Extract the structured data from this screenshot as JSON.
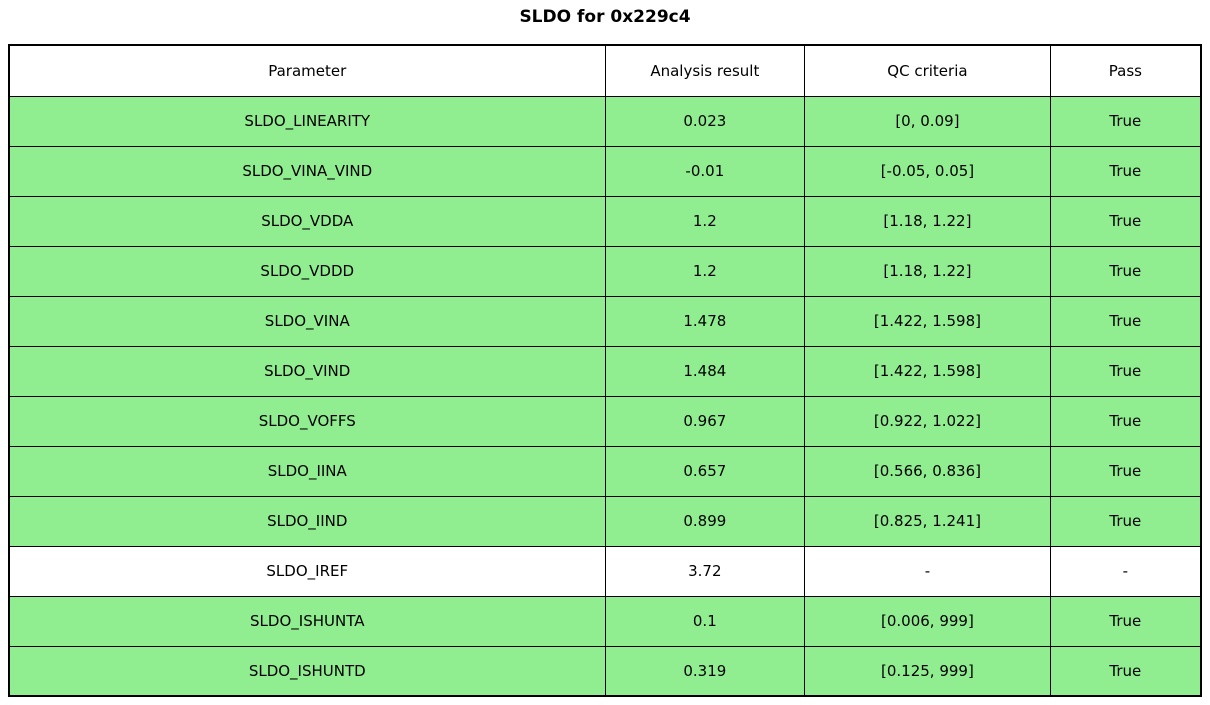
{
  "title": "SLDO for 0x229c4",
  "chart_data": {
    "type": "table",
    "title": "SLDO for 0x229c4",
    "columns": [
      "Parameter",
      "Analysis result",
      "QC criteria",
      "Pass"
    ],
    "rows": [
      {
        "parameter": "SLDO_LINEARITY",
        "analysis_result": "0.023",
        "qc_criteria": "[0, 0.09]",
        "pass": "True",
        "passed": true
      },
      {
        "parameter": "SLDO_VINA_VIND",
        "analysis_result": "-0.01",
        "qc_criteria": "[-0.05, 0.05]",
        "pass": "True",
        "passed": true
      },
      {
        "parameter": "SLDO_VDDA",
        "analysis_result": "1.2",
        "qc_criteria": "[1.18, 1.22]",
        "pass": "True",
        "passed": true
      },
      {
        "parameter": "SLDO_VDDD",
        "analysis_result": "1.2",
        "qc_criteria": "[1.18, 1.22]",
        "pass": "True",
        "passed": true
      },
      {
        "parameter": "SLDO_VINA",
        "analysis_result": "1.478",
        "qc_criteria": "[1.422, 1.598]",
        "pass": "True",
        "passed": true
      },
      {
        "parameter": "SLDO_VIND",
        "analysis_result": "1.484",
        "qc_criteria": "[1.422, 1.598]",
        "pass": "True",
        "passed": true
      },
      {
        "parameter": "SLDO_VOFFS",
        "analysis_result": "0.967",
        "qc_criteria": "[0.922, 1.022]",
        "pass": "True",
        "passed": true
      },
      {
        "parameter": "SLDO_IINA",
        "analysis_result": "0.657",
        "qc_criteria": "[0.566, 0.836]",
        "pass": "True",
        "passed": true
      },
      {
        "parameter": "SLDO_IIND",
        "analysis_result": "0.899",
        "qc_criteria": "[0.825, 1.241]",
        "pass": "True",
        "passed": true
      },
      {
        "parameter": "SLDO_IREF",
        "analysis_result": "3.72",
        "qc_criteria": "-",
        "pass": "-",
        "passed": null
      },
      {
        "parameter": "SLDO_ISHUNTA",
        "analysis_result": "0.1",
        "qc_criteria": "[0.006, 999]",
        "pass": "True",
        "passed": true
      },
      {
        "parameter": "SLDO_ISHUNTD",
        "analysis_result": "0.319",
        "qc_criteria": "[0.125, 999]",
        "pass": "True",
        "passed": true
      }
    ],
    "layout_hints": {
      "column_width_percents": [
        50.0,
        16.75,
        20.6,
        12.65
      ],
      "grid": "all-borders"
    }
  },
  "colors": {
    "pass_row_bg": "#90EE90",
    "neutral_row_bg": "#FFFFFF",
    "border": "#000000",
    "text": "#000000"
  }
}
